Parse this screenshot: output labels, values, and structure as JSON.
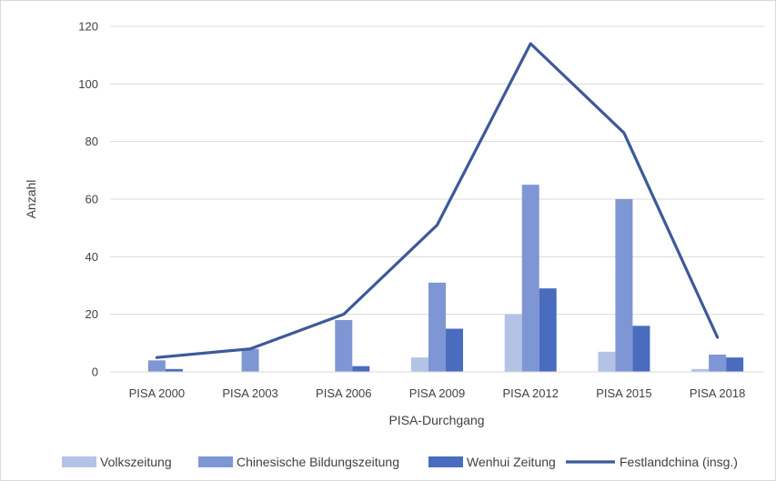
{
  "chart_data": {
    "type": "bar",
    "categories": [
      "PISA 2000",
      "PISA 2003",
      "PISA 2006",
      "PISA 2009",
      "PISA 2012",
      "PISA 2015",
      "PISA 2018"
    ],
    "series": [
      {
        "name": "Volkszeitung",
        "kind": "bar",
        "color": "#b4c2e6",
        "values": [
          0,
          0,
          0,
          5,
          20,
          7,
          1
        ]
      },
      {
        "name": "Chinesische Bildungszeitung",
        "kind": "bar",
        "color": "#7f96d4",
        "values": [
          4,
          8,
          18,
          31,
          65,
          60,
          6
        ]
      },
      {
        "name": "Wenhui Zeitung",
        "kind": "bar",
        "color": "#4a6cbf",
        "values": [
          1,
          0,
          2,
          15,
          29,
          16,
          5
        ]
      },
      {
        "name": "Festlandchina (insg.)",
        "kind": "line",
        "color": "#3c5a9a",
        "values": [
          5,
          8,
          20,
          51,
          114,
          83,
          12
        ]
      }
    ],
    "xlabel": "PISA-Durchgang",
    "ylabel": "Anzahl",
    "ylim": [
      0,
      120
    ],
    "yticks": [
      "0",
      "20",
      "40",
      "60",
      "80",
      "100",
      "120"
    ],
    "grid": true,
    "legend": "bottom"
  }
}
